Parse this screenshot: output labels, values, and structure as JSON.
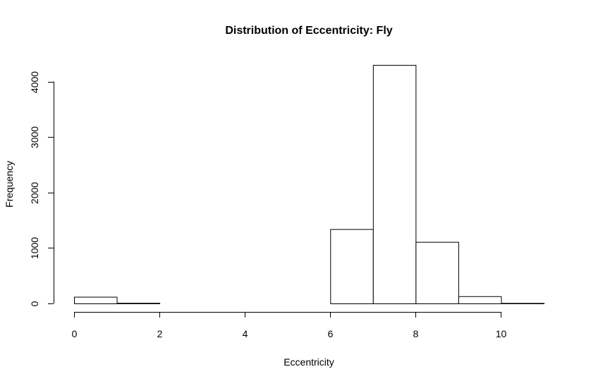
{
  "chart_data": {
    "type": "bar",
    "title": "Distribution of Eccentricity: Fly",
    "xlabel": "Eccentricity",
    "ylabel": "Frequency",
    "bin_edges": [
      0,
      1,
      2,
      3,
      4,
      5,
      6,
      7,
      8,
      9,
      10,
      11
    ],
    "values": [
      120,
      10,
      0,
      0,
      0,
      0,
      1340,
      4300,
      1110,
      130,
      8
    ],
    "xlim": [
      0,
      11
    ],
    "ylim": [
      0,
      4300
    ],
    "x_ticks": [
      0,
      2,
      4,
      6,
      8,
      10
    ],
    "x_tick_labels": [
      "0",
      "2",
      "4",
      "6",
      "8",
      "10"
    ],
    "y_ticks": [
      0,
      1000,
      2000,
      3000,
      4000
    ],
    "y_tick_labels": [
      "0",
      "1000",
      "2000",
      "3000",
      "4000"
    ],
    "grid": false,
    "colors": {
      "bar_fill": "#ffffff",
      "bar_stroke": "#000000"
    }
  }
}
